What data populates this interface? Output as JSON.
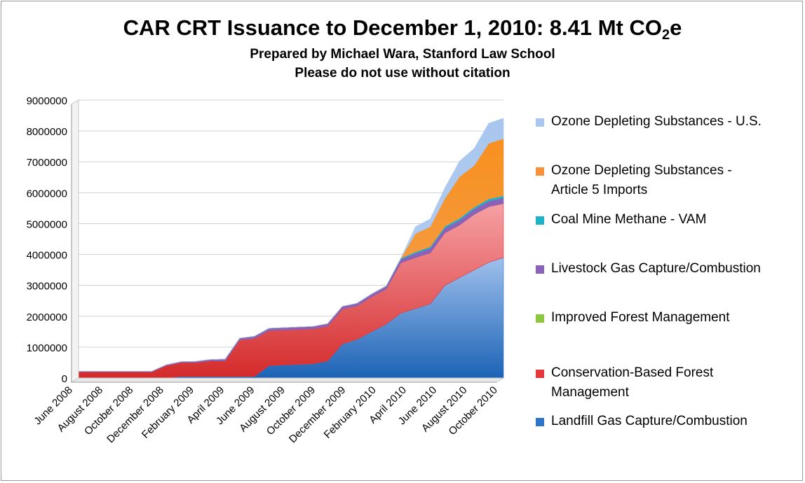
{
  "chart_data": {
    "type": "area",
    "stacked": true,
    "title_main": "CAR CRT Issuance to December 1, 2010: 8.41 Mt CO",
    "title_sub": "2",
    "title_suffix": "e",
    "subtitle_1": "Prepared by Michael Wara, Stanford Law School",
    "subtitle_2": "Please do not use without citation",
    "ylim": [
      0,
      9000000
    ],
    "y_ticks": [
      "0",
      "1000000",
      "2000000",
      "3000000",
      "4000000",
      "5000000",
      "6000000",
      "7000000",
      "8000000",
      "9000000"
    ],
    "grid": true,
    "legend_position": "right",
    "x_tick_labels": [
      "June 2008",
      "August 2008",
      "October 2008",
      "December 2008",
      "February 2009",
      "April 2009",
      "June 2009",
      "August 2009",
      "October 2009",
      "December 2009",
      "February 2010",
      "April 2010",
      "June 2010",
      "August 2010",
      "October 2010"
    ],
    "x": [
      "2008-06-01",
      "2008-07-01",
      "2008-08-01",
      "2008-09-01",
      "2008-10-01",
      "2008-11-01",
      "2008-12-01",
      "2009-01-01",
      "2009-02-01",
      "2009-03-01",
      "2009-04-01",
      "2009-05-01",
      "2009-06-01",
      "2009-07-01",
      "2009-08-01",
      "2009-09-01",
      "2009-10-01",
      "2009-11-01",
      "2009-12-01",
      "2010-01-01",
      "2010-02-01",
      "2010-03-01",
      "2010-04-01",
      "2010-05-01",
      "2010-06-01",
      "2010-07-01",
      "2010-08-01",
      "2010-09-01",
      "2010-10-01",
      "2010-11-01"
    ],
    "series": [
      {
        "name": "Landfill Gas Capture/Combustion",
        "color": "#2e75c9",
        "values": [
          0,
          0,
          0,
          0,
          0,
          0,
          0,
          50000,
          50000,
          50000,
          50000,
          50000,
          50000,
          400000,
          420000,
          440000,
          460000,
          550000,
          1100000,
          1250000,
          1500000,
          1750000,
          2100000,
          2250000,
          2400000,
          3000000,
          3250000,
          3500000,
          3750000,
          3900000
        ]
      },
      {
        "name": "Conservation-Based Forest Management",
        "color": "#e5383b",
        "values": [
          200000,
          200000,
          200000,
          200000,
          200000,
          200000,
          400000,
          450000,
          450000,
          500000,
          500000,
          1180000,
          1230000,
          1130000,
          1130000,
          1130000,
          1130000,
          1130000,
          1130000,
          1080000,
          1130000,
          1130000,
          1630000,
          1650000,
          1650000,
          1700000,
          1700000,
          1800000,
          1800000,
          1750000
        ]
      },
      {
        "name": "Improved Forest Management",
        "color": "#8dc63f",
        "values": [
          0,
          0,
          0,
          0,
          0,
          0,
          0,
          0,
          0,
          0,
          0,
          0,
          0,
          0,
          0,
          0,
          0,
          0,
          0,
          0,
          0,
          0,
          0,
          0,
          0,
          0,
          0,
          0,
          0,
          0
        ]
      },
      {
        "name": "Livestock Gas Capture/Combustion",
        "color": "#8a62b8",
        "values": [
          20000,
          20000,
          20000,
          20000,
          20000,
          20000,
          30000,
          30000,
          40000,
          50000,
          60000,
          60000,
          70000,
          80000,
          80000,
          80000,
          80000,
          80000,
          90000,
          90000,
          90000,
          100000,
          120000,
          140000,
          150000,
          160000,
          160000,
          170000,
          180000,
          180000
        ]
      },
      {
        "name": "Coal Mine Methane - VAM",
        "color": "#1fb3c8",
        "values": [
          0,
          0,
          0,
          0,
          0,
          0,
          0,
          0,
          0,
          0,
          0,
          0,
          0,
          0,
          0,
          0,
          0,
          0,
          0,
          0,
          0,
          0,
          30000,
          40000,
          50000,
          50000,
          60000,
          60000,
          70000,
          70000
        ]
      },
      {
        "name": "Ozone Depleting Substances - Article 5 Imports",
        "color": "#f7913a",
        "values": [
          0,
          0,
          0,
          0,
          0,
          0,
          0,
          0,
          0,
          0,
          0,
          0,
          0,
          0,
          0,
          0,
          0,
          0,
          0,
          0,
          0,
          0,
          0,
          600000,
          650000,
          900000,
          1350000,
          1350000,
          1800000,
          1850000
        ]
      },
      {
        "name": "Ozone Depleting Substances - U.S.",
        "color": "#a8c6f0",
        "values": [
          0,
          0,
          0,
          0,
          0,
          0,
          0,
          0,
          0,
          0,
          0,
          0,
          0,
          0,
          0,
          0,
          0,
          0,
          0,
          0,
          0,
          0,
          0,
          220000,
          250000,
          340000,
          500000,
          550000,
          650000,
          660000
        ]
      }
    ],
    "legend": [
      {
        "lines": [
          "Ozone Depleting Substances - U.S."
        ],
        "color": "#a8c6f0"
      },
      {
        "lines": [
          "Ozone Depleting Substances -",
          "Article 5 Imports"
        ],
        "color": "#f7913a"
      },
      {
        "lines": [
          "Coal Mine Methane - VAM"
        ],
        "color": "#1fb3c8"
      },
      {
        "lines": [
          "Livestock Gas Capture/Combustion"
        ],
        "color": "#8a62b8"
      },
      {
        "lines": [
          "Improved Forest Management"
        ],
        "color": "#8dc63f"
      },
      {
        "lines": [
          "Conservation-Based Forest",
          "Management"
        ],
        "color": "#e5383b"
      },
      {
        "lines": [
          "Landfill Gas Capture/Combustion"
        ],
        "color": "#2e75c9"
      }
    ]
  }
}
